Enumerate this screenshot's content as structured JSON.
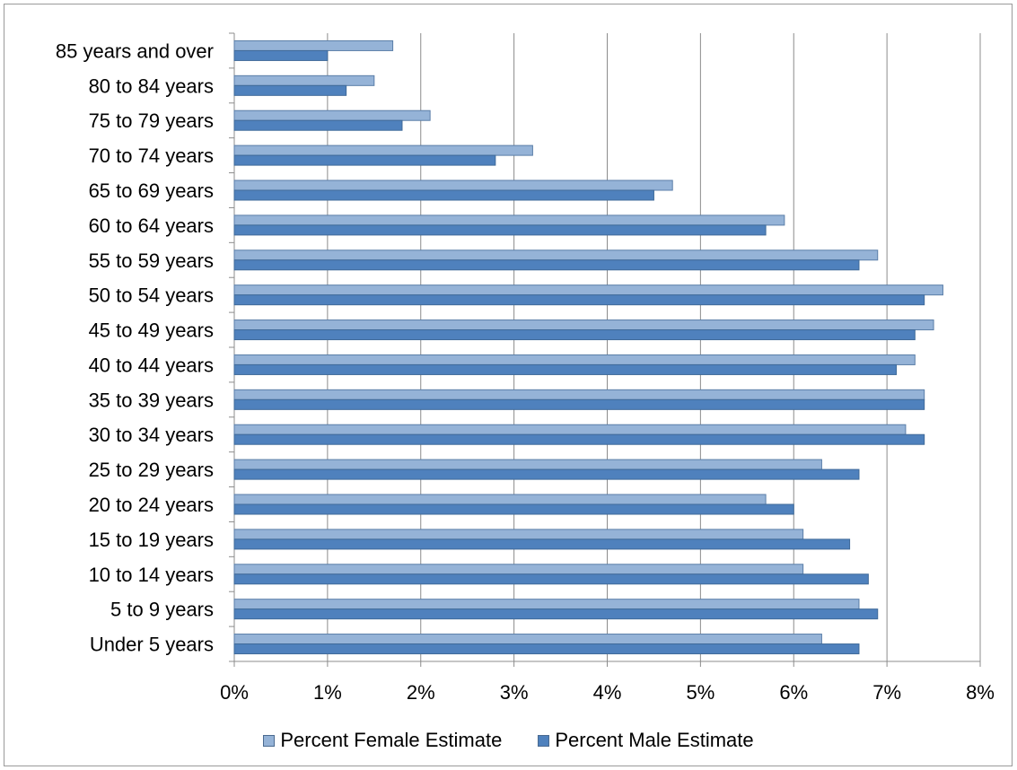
{
  "chart_data": {
    "type": "bar",
    "orientation": "horizontal",
    "categories": [
      "85 years and over",
      "80 to 84 years",
      "75 to 79 years",
      "70 to 74 years",
      "65 to 69 years",
      "60 to 64 years",
      "55 to 59 years",
      "50 to 54 years",
      "45 to 49 years",
      "40 to 44 years",
      "35 to 39 years",
      "30 to 34 years",
      "25 to 29 years",
      "20 to 24 years",
      "15 to 19 years",
      "10 to 14 years",
      "5 to 9 years",
      "Under 5 years"
    ],
    "series": [
      {
        "name": "Percent Female Estimate",
        "color": "#95b3d7",
        "values": [
          1.7,
          1.5,
          2.1,
          3.2,
          4.7,
          5.9,
          6.9,
          7.6,
          7.5,
          7.3,
          7.4,
          7.2,
          6.3,
          5.7,
          6.1,
          6.1,
          6.7,
          6.3
        ]
      },
      {
        "name": "Percent Male Estimate",
        "color": "#4f81bd",
        "values": [
          1.0,
          1.2,
          1.8,
          2.8,
          4.5,
          5.7,
          6.7,
          7.4,
          7.3,
          7.1,
          7.4,
          7.4,
          6.7,
          6.0,
          6.6,
          6.8,
          6.9,
          6.7
        ]
      }
    ],
    "xlim": [
      0,
      8
    ],
    "xticks": [
      "0%",
      "1%",
      "2%",
      "3%",
      "4%",
      "5%",
      "6%",
      "7%",
      "8%"
    ],
    "grid": true,
    "legend_position": "bottom",
    "title": "",
    "xlabel": "",
    "ylabel": ""
  }
}
